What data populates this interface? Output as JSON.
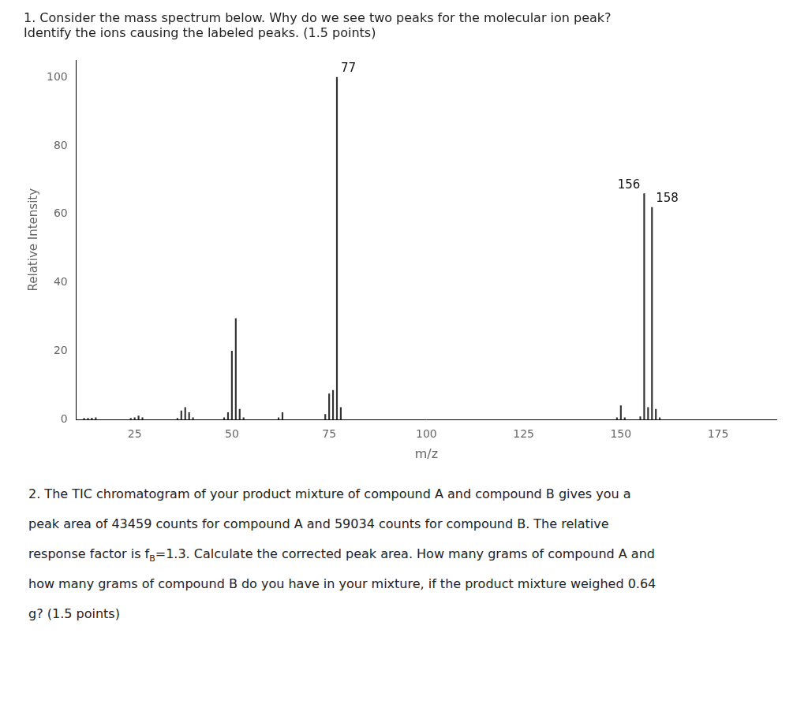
{
  "chart_data": {
    "type": "bar",
    "title": [
      "1. Consider the mass spectrum below. Why do we see two peaks for the molecular ion peak?",
      "Identify the ions causing the labeled peaks. (1.5 points)"
    ],
    "xlabel": "m/z",
    "ylabel": "Relative Intensity",
    "x": [
      12,
      13,
      14,
      15,
      24,
      25,
      26,
      27,
      36,
      37,
      38,
      39,
      40,
      48,
      49,
      50,
      51,
      52,
      53,
      62,
      63,
      74,
      75,
      76,
      77,
      78,
      149,
      150,
      151,
      155,
      156,
      157,
      158,
      159,
      160
    ],
    "values": [
      0.3,
      0.3,
      0.4,
      0.5,
      0.3,
      0.5,
      1.0,
      0.5,
      0.3,
      2.5,
      3.5,
      2.0,
      0.5,
      0.5,
      2.0,
      20.0,
      29.5,
      3.0,
      0.5,
      0.5,
      2.0,
      1.5,
      7.5,
      8.5,
      100.0,
      3.5,
      0.5,
      4.0,
      0.5,
      0.8,
      66.0,
      3.5,
      62.0,
      3.0,
      0.5
    ],
    "color": "#333333",
    "xlim": [
      10,
      190
    ],
    "ylim": [
      0,
      105
    ],
    "xticks": [
      25,
      50,
      75,
      100,
      125,
      150,
      175
    ],
    "yticks": [
      0,
      20,
      40,
      60,
      80,
      100
    ],
    "grid": false,
    "annotations": [
      {
        "x": 77,
        "y": 100.0,
        "text": "77"
      },
      {
        "x": 156,
        "y": 66.0,
        "text": "156"
      },
      {
        "x": 158,
        "y": 62.0,
        "text": "158"
      }
    ],
    "footer": [
      "2. The TIC chromatogram of your product mixture of compound A and compound B gives you a",
      "peak area of 43459 counts for compound A and 59034 counts for compound B. The relative",
      [
        "response factor is f",
        "B",
        "=1.3. Calculate the corrected peak area. How many grams of compound A and"
      ],
      "how many grams of compound B do you have in your mixture, if the product mixture weighed 0.64",
      "g? (1.5 points)"
    ]
  }
}
